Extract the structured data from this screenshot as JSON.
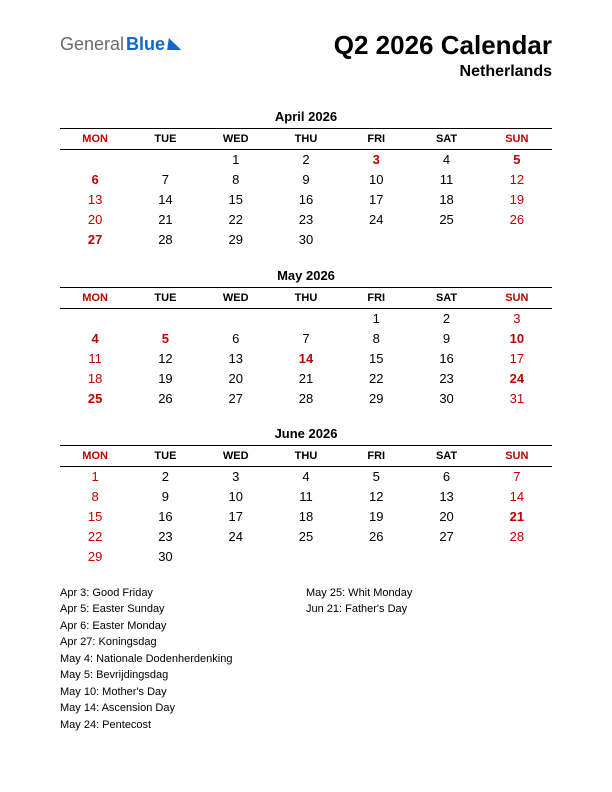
{
  "logo": {
    "part1": "General",
    "part2": "Blue"
  },
  "title": "Q2 2026 Calendar",
  "subtitle": "Netherlands",
  "colors": {
    "red": "#c00000",
    "black": "#000000",
    "logo_blue": "#1168c9",
    "logo_gray": "#6a6a6a",
    "bg": "#ffffff"
  },
  "weekday_headers": [
    "MON",
    "TUE",
    "WED",
    "THU",
    "FRI",
    "SAT",
    "SUN"
  ],
  "header_red_cols": [
    0,
    6
  ],
  "months": [
    {
      "name": "April 2026",
      "weeks": [
        [
          null,
          null,
          {
            "d": 1
          },
          {
            "d": 2
          },
          {
            "d": 3,
            "red": true,
            "bold": true
          },
          {
            "d": 4
          },
          {
            "d": 5,
            "red": true,
            "bold": true
          }
        ],
        [
          {
            "d": 6,
            "red": true,
            "bold": true
          },
          {
            "d": 7
          },
          {
            "d": 8
          },
          {
            "d": 9
          },
          {
            "d": 10
          },
          {
            "d": 11
          },
          {
            "d": 12,
            "red": true
          }
        ],
        [
          {
            "d": 13,
            "red": true
          },
          {
            "d": 14
          },
          {
            "d": 15
          },
          {
            "d": 16
          },
          {
            "d": 17
          },
          {
            "d": 18
          },
          {
            "d": 19,
            "red": true
          }
        ],
        [
          {
            "d": 20,
            "red": true
          },
          {
            "d": 21
          },
          {
            "d": 22
          },
          {
            "d": 23
          },
          {
            "d": 24
          },
          {
            "d": 25
          },
          {
            "d": 26,
            "red": true
          }
        ],
        [
          {
            "d": 27,
            "red": true,
            "bold": true
          },
          {
            "d": 28
          },
          {
            "d": 29
          },
          {
            "d": 30
          },
          null,
          null,
          null
        ]
      ]
    },
    {
      "name": "May 2026",
      "weeks": [
        [
          null,
          null,
          null,
          null,
          {
            "d": 1
          },
          {
            "d": 2
          },
          {
            "d": 3,
            "red": true
          }
        ],
        [
          {
            "d": 4,
            "red": true,
            "bold": true
          },
          {
            "d": 5,
            "red": true,
            "bold": true
          },
          {
            "d": 6
          },
          {
            "d": 7
          },
          {
            "d": 8
          },
          {
            "d": 9
          },
          {
            "d": 10,
            "red": true,
            "bold": true
          }
        ],
        [
          {
            "d": 11,
            "red": true
          },
          {
            "d": 12
          },
          {
            "d": 13
          },
          {
            "d": 14,
            "red": true,
            "bold": true
          },
          {
            "d": 15
          },
          {
            "d": 16
          },
          {
            "d": 17,
            "red": true
          }
        ],
        [
          {
            "d": 18,
            "red": true
          },
          {
            "d": 19
          },
          {
            "d": 20
          },
          {
            "d": 21
          },
          {
            "d": 22
          },
          {
            "d": 23
          },
          {
            "d": 24,
            "red": true,
            "bold": true
          }
        ],
        [
          {
            "d": 25,
            "red": true,
            "bold": true
          },
          {
            "d": 26
          },
          {
            "d": 27
          },
          {
            "d": 28
          },
          {
            "d": 29
          },
          {
            "d": 30
          },
          {
            "d": 31,
            "red": true
          }
        ]
      ]
    },
    {
      "name": "June 2026",
      "weeks": [
        [
          {
            "d": 1,
            "red": true
          },
          {
            "d": 2
          },
          {
            "d": 3
          },
          {
            "d": 4
          },
          {
            "d": 5
          },
          {
            "d": 6
          },
          {
            "d": 7,
            "red": true
          }
        ],
        [
          {
            "d": 8,
            "red": true
          },
          {
            "d": 9
          },
          {
            "d": 10
          },
          {
            "d": 11
          },
          {
            "d": 12
          },
          {
            "d": 13
          },
          {
            "d": 14,
            "red": true
          }
        ],
        [
          {
            "d": 15,
            "red": true
          },
          {
            "d": 16
          },
          {
            "d": 17
          },
          {
            "d": 18
          },
          {
            "d": 19
          },
          {
            "d": 20
          },
          {
            "d": 21,
            "red": true,
            "bold": true
          }
        ],
        [
          {
            "d": 22,
            "red": true
          },
          {
            "d": 23
          },
          {
            "d": 24
          },
          {
            "d": 25
          },
          {
            "d": 26
          },
          {
            "d": 27
          },
          {
            "d": 28,
            "red": true
          }
        ],
        [
          {
            "d": 29,
            "red": true
          },
          {
            "d": 30
          },
          null,
          null,
          null,
          null,
          null
        ]
      ]
    }
  ],
  "holidays_left": [
    "Apr 3: Good Friday",
    "Apr 5: Easter Sunday",
    "Apr 6: Easter Monday",
    "Apr 27: Koningsdag",
    "May 4: Nationale Dodenherdenking",
    "May 5: Bevrijdingsdag",
    "May 10: Mother's Day",
    "May 14: Ascension Day",
    "May 24: Pentecost"
  ],
  "holidays_right": [
    "May 25: Whit Monday",
    "Jun 21: Father's Day"
  ]
}
